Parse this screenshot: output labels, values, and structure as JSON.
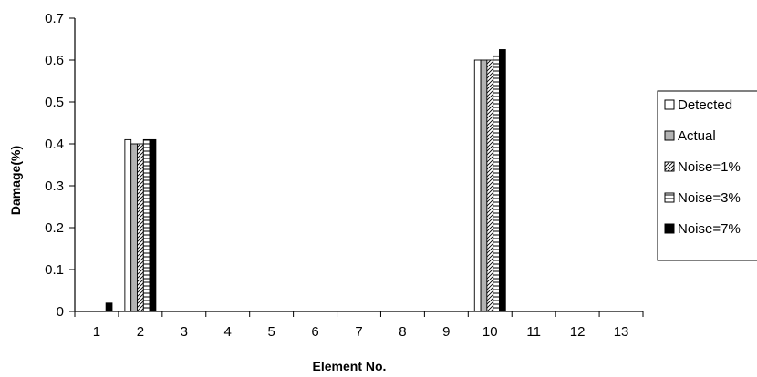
{
  "chart_data": {
    "type": "bar",
    "xlabel": "Element No.",
    "ylabel": "Damage(%)",
    "categories": [
      "1",
      "2",
      "3",
      "4",
      "5",
      "6",
      "7",
      "8",
      "9",
      "10",
      "11",
      "12",
      "13"
    ],
    "ylim": [
      0,
      0.7
    ],
    "yticks": [
      "0",
      "0.1",
      "0.2",
      "0.3",
      "0.4",
      "0.5",
      "0.6",
      "0.7"
    ],
    "grid": false,
    "legend_position": "right",
    "series": [
      {
        "name": "Detected",
        "pattern": "white",
        "values": [
          0,
          0.41,
          0,
          0,
          0,
          0,
          0,
          0,
          0,
          0.6,
          0,
          0,
          0
        ]
      },
      {
        "name": "Actual",
        "pattern": "gray",
        "values": [
          0,
          0.4,
          0,
          0,
          0,
          0,
          0,
          0,
          0,
          0.6,
          0,
          0,
          0
        ]
      },
      {
        "name": "Noise=1%",
        "pattern": "diagonal-hatch",
        "values": [
          0,
          0.4,
          0,
          0,
          0,
          0,
          0,
          0,
          0,
          0.6,
          0,
          0,
          0
        ]
      },
      {
        "name": "Noise=3%",
        "pattern": "horizontal-hatch",
        "values": [
          0,
          0.41,
          0,
          0,
          0,
          0,
          0,
          0,
          0,
          0.61,
          0,
          0,
          0
        ]
      },
      {
        "name": "Noise=7%",
        "pattern": "black",
        "values": [
          0.02,
          0.41,
          0,
          0,
          0,
          0,
          0,
          0,
          0,
          0.625,
          0,
          0,
          0
        ]
      }
    ]
  },
  "colors": {
    "axis": "#000000",
    "gray_fill": "#b3b3b3",
    "black_fill": "#000000",
    "white_fill": "#ffffff"
  }
}
